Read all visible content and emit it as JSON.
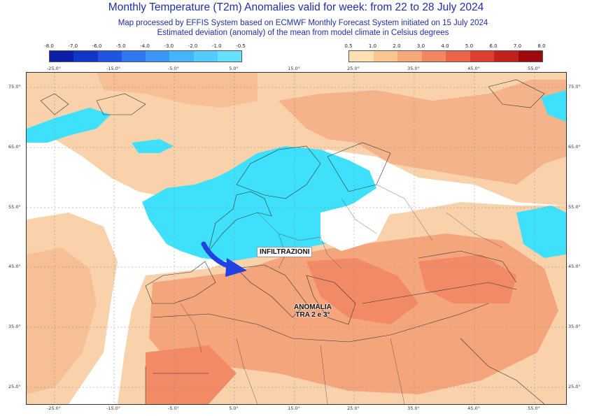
{
  "header": {
    "title": "Monthly Temperature (T2m) Anomalies valid for week: from 22 to 28 July 2024",
    "subtitle1": "Map processed by EFFIS System based on ECMWF Monthly Forecast System initiated on 15 July 2024",
    "subtitle2": "Estimated deviation (anomaly) of the mean from model climate in Celsius degrees"
  },
  "colorbar": {
    "cold": {
      "labels": [
        "-8.0",
        "-7.0",
        "-6.0",
        "-5.0",
        "-4.0",
        "-3.0",
        "-2.0",
        "-1.0",
        "-0.5"
      ],
      "colors": [
        "#0b1ea8",
        "#1236c8",
        "#1f55e0",
        "#2f78f0",
        "#3b97f7",
        "#44b5fb",
        "#52ccfd",
        "#67e0fd"
      ]
    },
    "warm": {
      "labels": [
        "0.5",
        "1.0",
        "2.0",
        "3.0",
        "4.0",
        "5.0",
        "6.0",
        "7.0",
        "8.0"
      ],
      "colors": [
        "#fce0b2",
        "#f9c690",
        "#f6a878",
        "#f28660",
        "#ec6447",
        "#de3f30",
        "#c3211d",
        "#9d0a0e"
      ]
    }
  },
  "axes": {
    "lon_labels": [
      "-25.0°",
      "-15.0°",
      "-5.0°",
      "5.0°",
      "15.0°",
      "25.0°",
      "35.0°",
      "45.0°",
      "55.0°"
    ],
    "lat_labels": [
      "75.0°",
      "65.0°",
      "55.0°",
      "45.0°",
      "35.0°",
      "25.0°"
    ]
  },
  "annotations": {
    "infiltrazioni": "INFILTRAZIONI",
    "anomalia_line1": "ANOMALIA",
    "anomalia_line2": "TRA 2 e 3°"
  },
  "colors": {
    "title": "#1f2fa8",
    "land_warm": "#f8c79c",
    "warm_strong": "#f4a57c",
    "cool": "#3ee0fb",
    "arrow": "#2340e0"
  }
}
